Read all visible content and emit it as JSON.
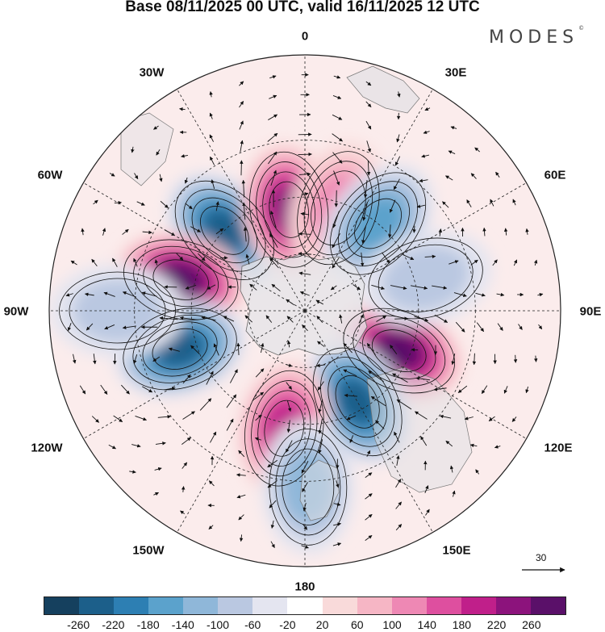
{
  "title": "Base 08/11/2025 00 UTC, valid 16/11/2025 12 UTC",
  "brand": "MODES",
  "brand_mark": "©",
  "longitude_labels": {
    "lon_0": "0",
    "lon_30e": "30E",
    "lon_60e": "60E",
    "lon_90e": "90E",
    "lon_120e": "120E",
    "lon_150e": "150E",
    "lon_180": "180",
    "lon_150w": "150W",
    "lon_120w": "120W",
    "lon_90w": "90W",
    "lon_60w": "60W",
    "lon_30w": "30W"
  },
  "reference_vector": {
    "label": "30",
    "magnitude": 30
  },
  "colorbar": {
    "colors": [
      "#15405e",
      "#1c5f8a",
      "#2d7fb3",
      "#5ba2cc",
      "#8fb7d9",
      "#bac8e1",
      "#e4e5f0",
      "#ffffff",
      "#f9dada",
      "#f6b6c5",
      "#ee88b4",
      "#de4f9f",
      "#c01f8a",
      "#8c137c",
      "#5a1069"
    ],
    "ticks": [
      "-260",
      "-220",
      "-180",
      "-140",
      "-100",
      "-60",
      "-20",
      "20",
      "60",
      "100",
      "140",
      "180",
      "220",
      "260"
    ]
  },
  "anomalies": [
    {
      "id": "neg-30w-60w",
      "value": -220,
      "lon": -45,
      "colat": 40
    },
    {
      "id": "pos-75w",
      "value": 260,
      "lon": -76,
      "colat": 45
    },
    {
      "id": "neg-105w",
      "value": -220,
      "lon": -107,
      "colat": 46
    },
    {
      "id": "pos-10w",
      "value": 220,
      "lon": -9,
      "colat": 36
    },
    {
      "id": "pos-15e",
      "value": 120,
      "lon": 18,
      "colat": 38
    },
    {
      "id": "neg-35e",
      "value": -140,
      "lon": 40,
      "colat": 40
    },
    {
      "id": "pos-115e",
      "value": 260,
      "lon": 113,
      "colat": 36
    },
    {
      "id": "neg-150e",
      "value": -220,
      "lon": 150,
      "colat": 37
    },
    {
      "id": "pos-165w",
      "value": 180,
      "lon": -170,
      "colat": 42
    },
    {
      "id": "neg-180",
      "value": -100,
      "lon": 179,
      "colat": 62
    },
    {
      "id": "neg-75e",
      "value": -60,
      "lon": 75,
      "colat": 44
    },
    {
      "id": "neg-85w",
      "value": -60,
      "lon": -90,
      "colat": 66
    }
  ]
}
